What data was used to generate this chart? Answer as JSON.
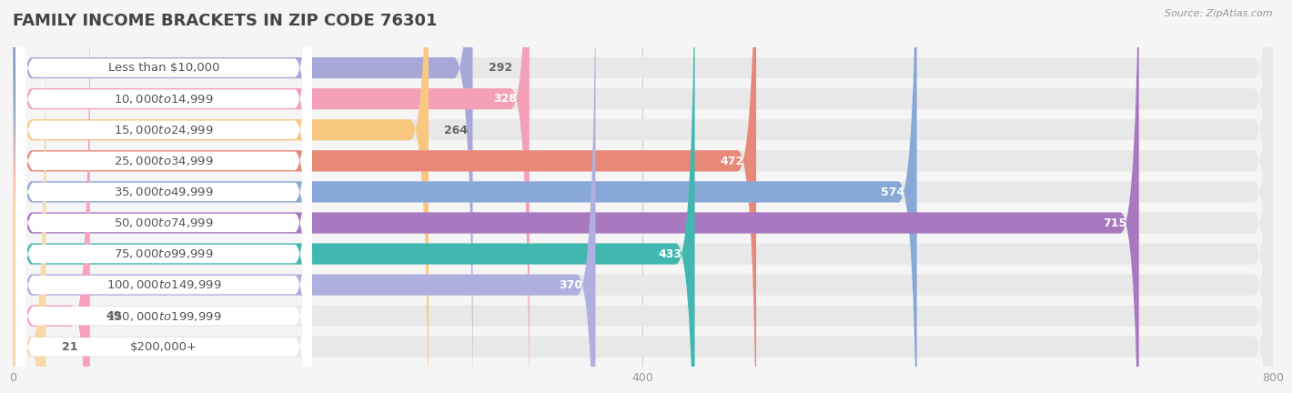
{
  "title": "FAMILY INCOME BRACKETS IN ZIP CODE 76301",
  "source": "Source: ZipAtlas.com",
  "categories": [
    "Less than $10,000",
    "$10,000 to $14,999",
    "$15,000 to $24,999",
    "$25,000 to $34,999",
    "$35,000 to $49,999",
    "$50,000 to $74,999",
    "$75,000 to $99,999",
    "$100,000 to $149,999",
    "$150,000 to $199,999",
    "$200,000+"
  ],
  "values": [
    292,
    328,
    264,
    472,
    574,
    715,
    433,
    370,
    49,
    21
  ],
  "bar_colors": [
    "#a8a8d8",
    "#f4a0b8",
    "#f8c880",
    "#e88878",
    "#88a8d8",
    "#a878c0",
    "#40b8b0",
    "#b0b0e0",
    "#f8a0c0",
    "#f8d8a8"
  ],
  "xlim": [
    0,
    800
  ],
  "xticks": [
    0,
    400,
    800
  ],
  "background_color": "#f5f5f5",
  "bar_background_color": "#e8e8e8",
  "title_fontsize": 13,
  "label_fontsize": 9.5,
  "value_fontsize": 9,
  "bar_height": 0.68,
  "label_text_color": "#555555",
  "value_text_color_inside": "#ffffff",
  "value_text_color_outside": "#666666",
  "value_threshold": 120
}
